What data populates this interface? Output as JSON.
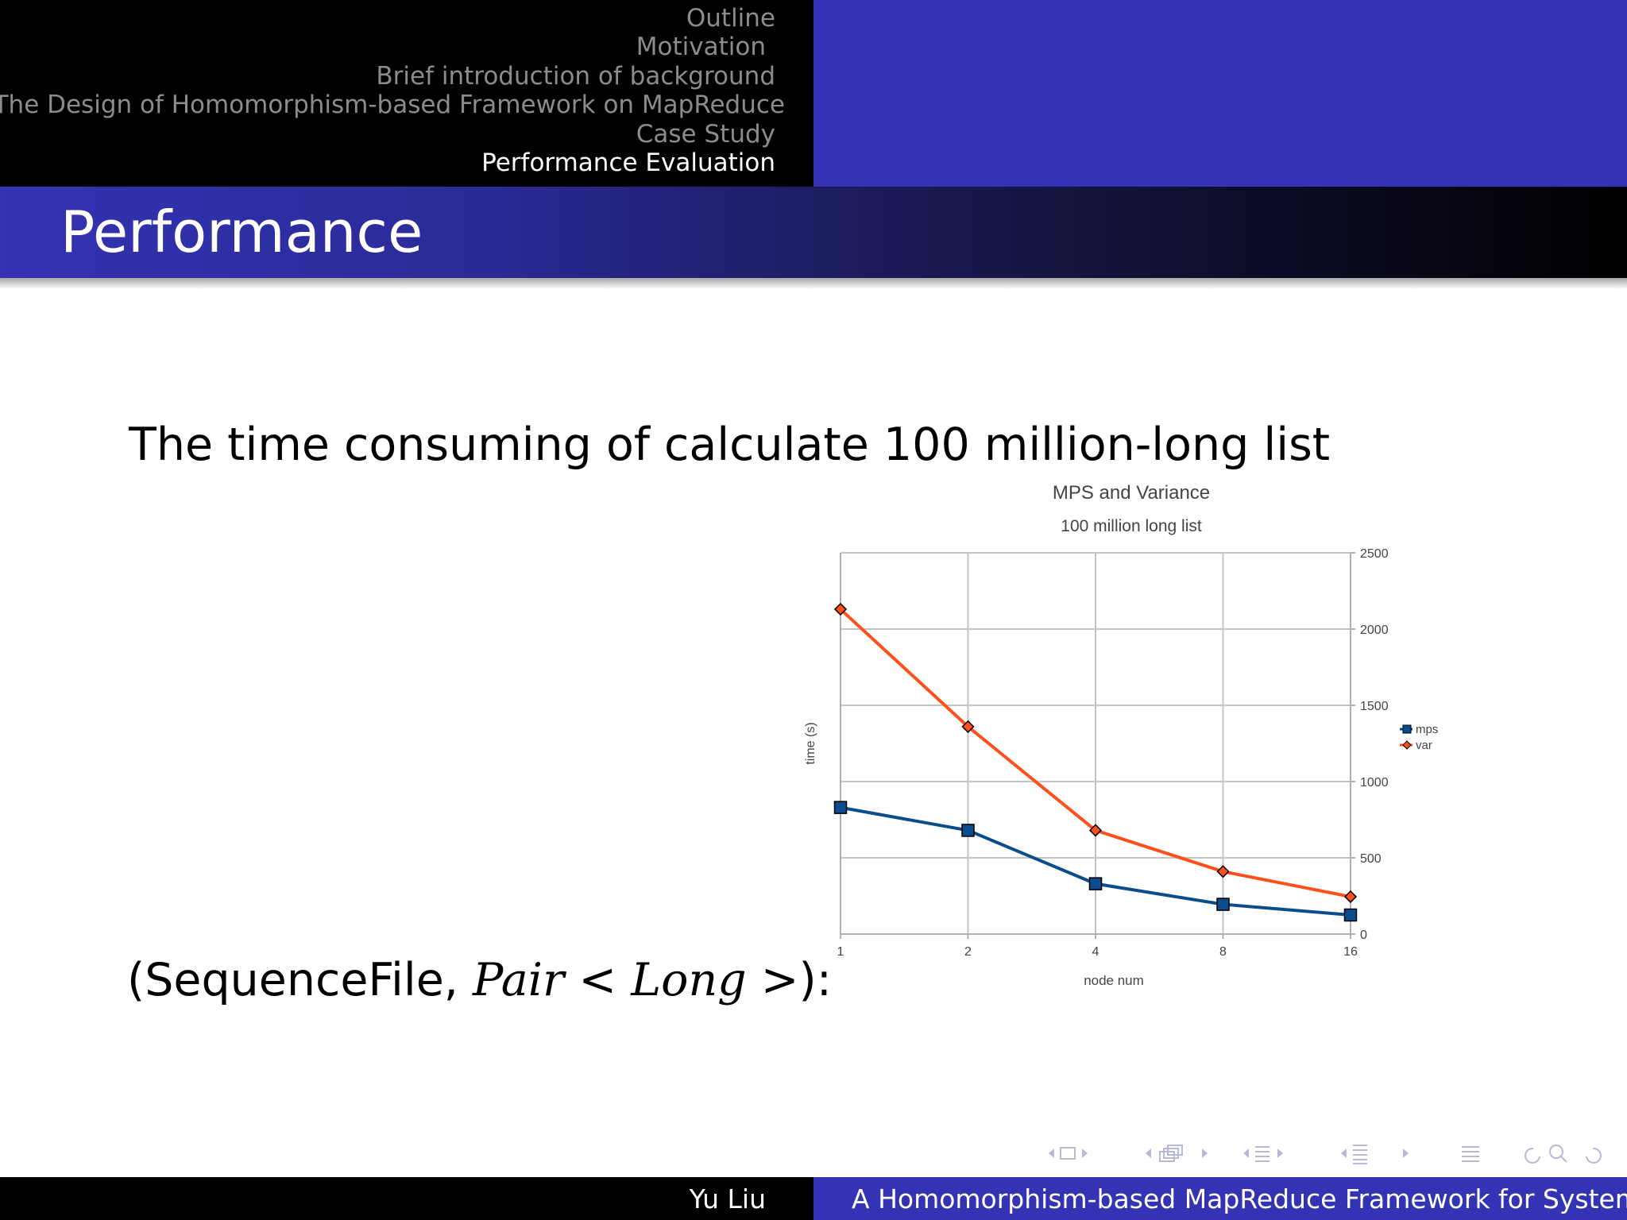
{
  "header": {
    "outline": [
      {
        "label": "Outline",
        "active": false
      },
      {
        "label": "Motivation",
        "active": false
      },
      {
        "label": "Brief introduction of background",
        "active": false
      },
      {
        "label": "The Design of Homomorphism-based Framework on MapReduce",
        "active": false
      },
      {
        "label": "Case Study",
        "active": false
      },
      {
        "label": "Performance Evaluation",
        "active": true
      }
    ]
  },
  "frame": {
    "title": "Performance",
    "text": "The time consuming of calculate 100 million-long list",
    "formula": {
      "prefix": "(SequenceFile, ",
      "pair": "Pair",
      "lt": " < ",
      "long": "Long",
      "gt": " >",
      "suffix": "):"
    }
  },
  "chart_data": {
    "type": "line",
    "title": "MPS and Variance",
    "subtitle": "100 million long list",
    "xlabel": "node num",
    "ylabel": "time (s)",
    "categories": [
      "1",
      "2",
      "4",
      "8",
      "16"
    ],
    "ylim": [
      0,
      2500
    ],
    "yticks": [
      "0",
      "500",
      "1000",
      "1500",
      "2000",
      "2500"
    ],
    "grid": true,
    "legend_position": "right",
    "series": [
      {
        "name": "mps",
        "values": [
          830,
          680,
          330,
          195,
          125
        ],
        "color": "#0b4c8c",
        "marker": "square"
      },
      {
        "name": "var",
        "values": [
          2130,
          1360,
          680,
          410,
          245
        ],
        "color": "#ff4f1a",
        "marker": "diamond"
      }
    ]
  },
  "footer": {
    "author": "Yu Liu",
    "title": "A Homomorphism-based MapReduce Framework for Systematic Parallel Programming"
  },
  "navigation": {
    "icons": [
      "nav-prev-frame-icon",
      "nav-frame-icon",
      "nav-next-frame-icon",
      "nav-prev-subsection-icon",
      "nav-subsection-icon",
      "nav-next-subsection-icon",
      "nav-prev-section-icon",
      "nav-section-icon",
      "nav-next-section-icon",
      "nav-prev-doc-icon",
      "nav-doc-icon",
      "nav-next-doc-icon",
      "nav-toc-icon",
      "nav-back-icon",
      "nav-search-icon",
      "nav-forward-icon"
    ]
  }
}
